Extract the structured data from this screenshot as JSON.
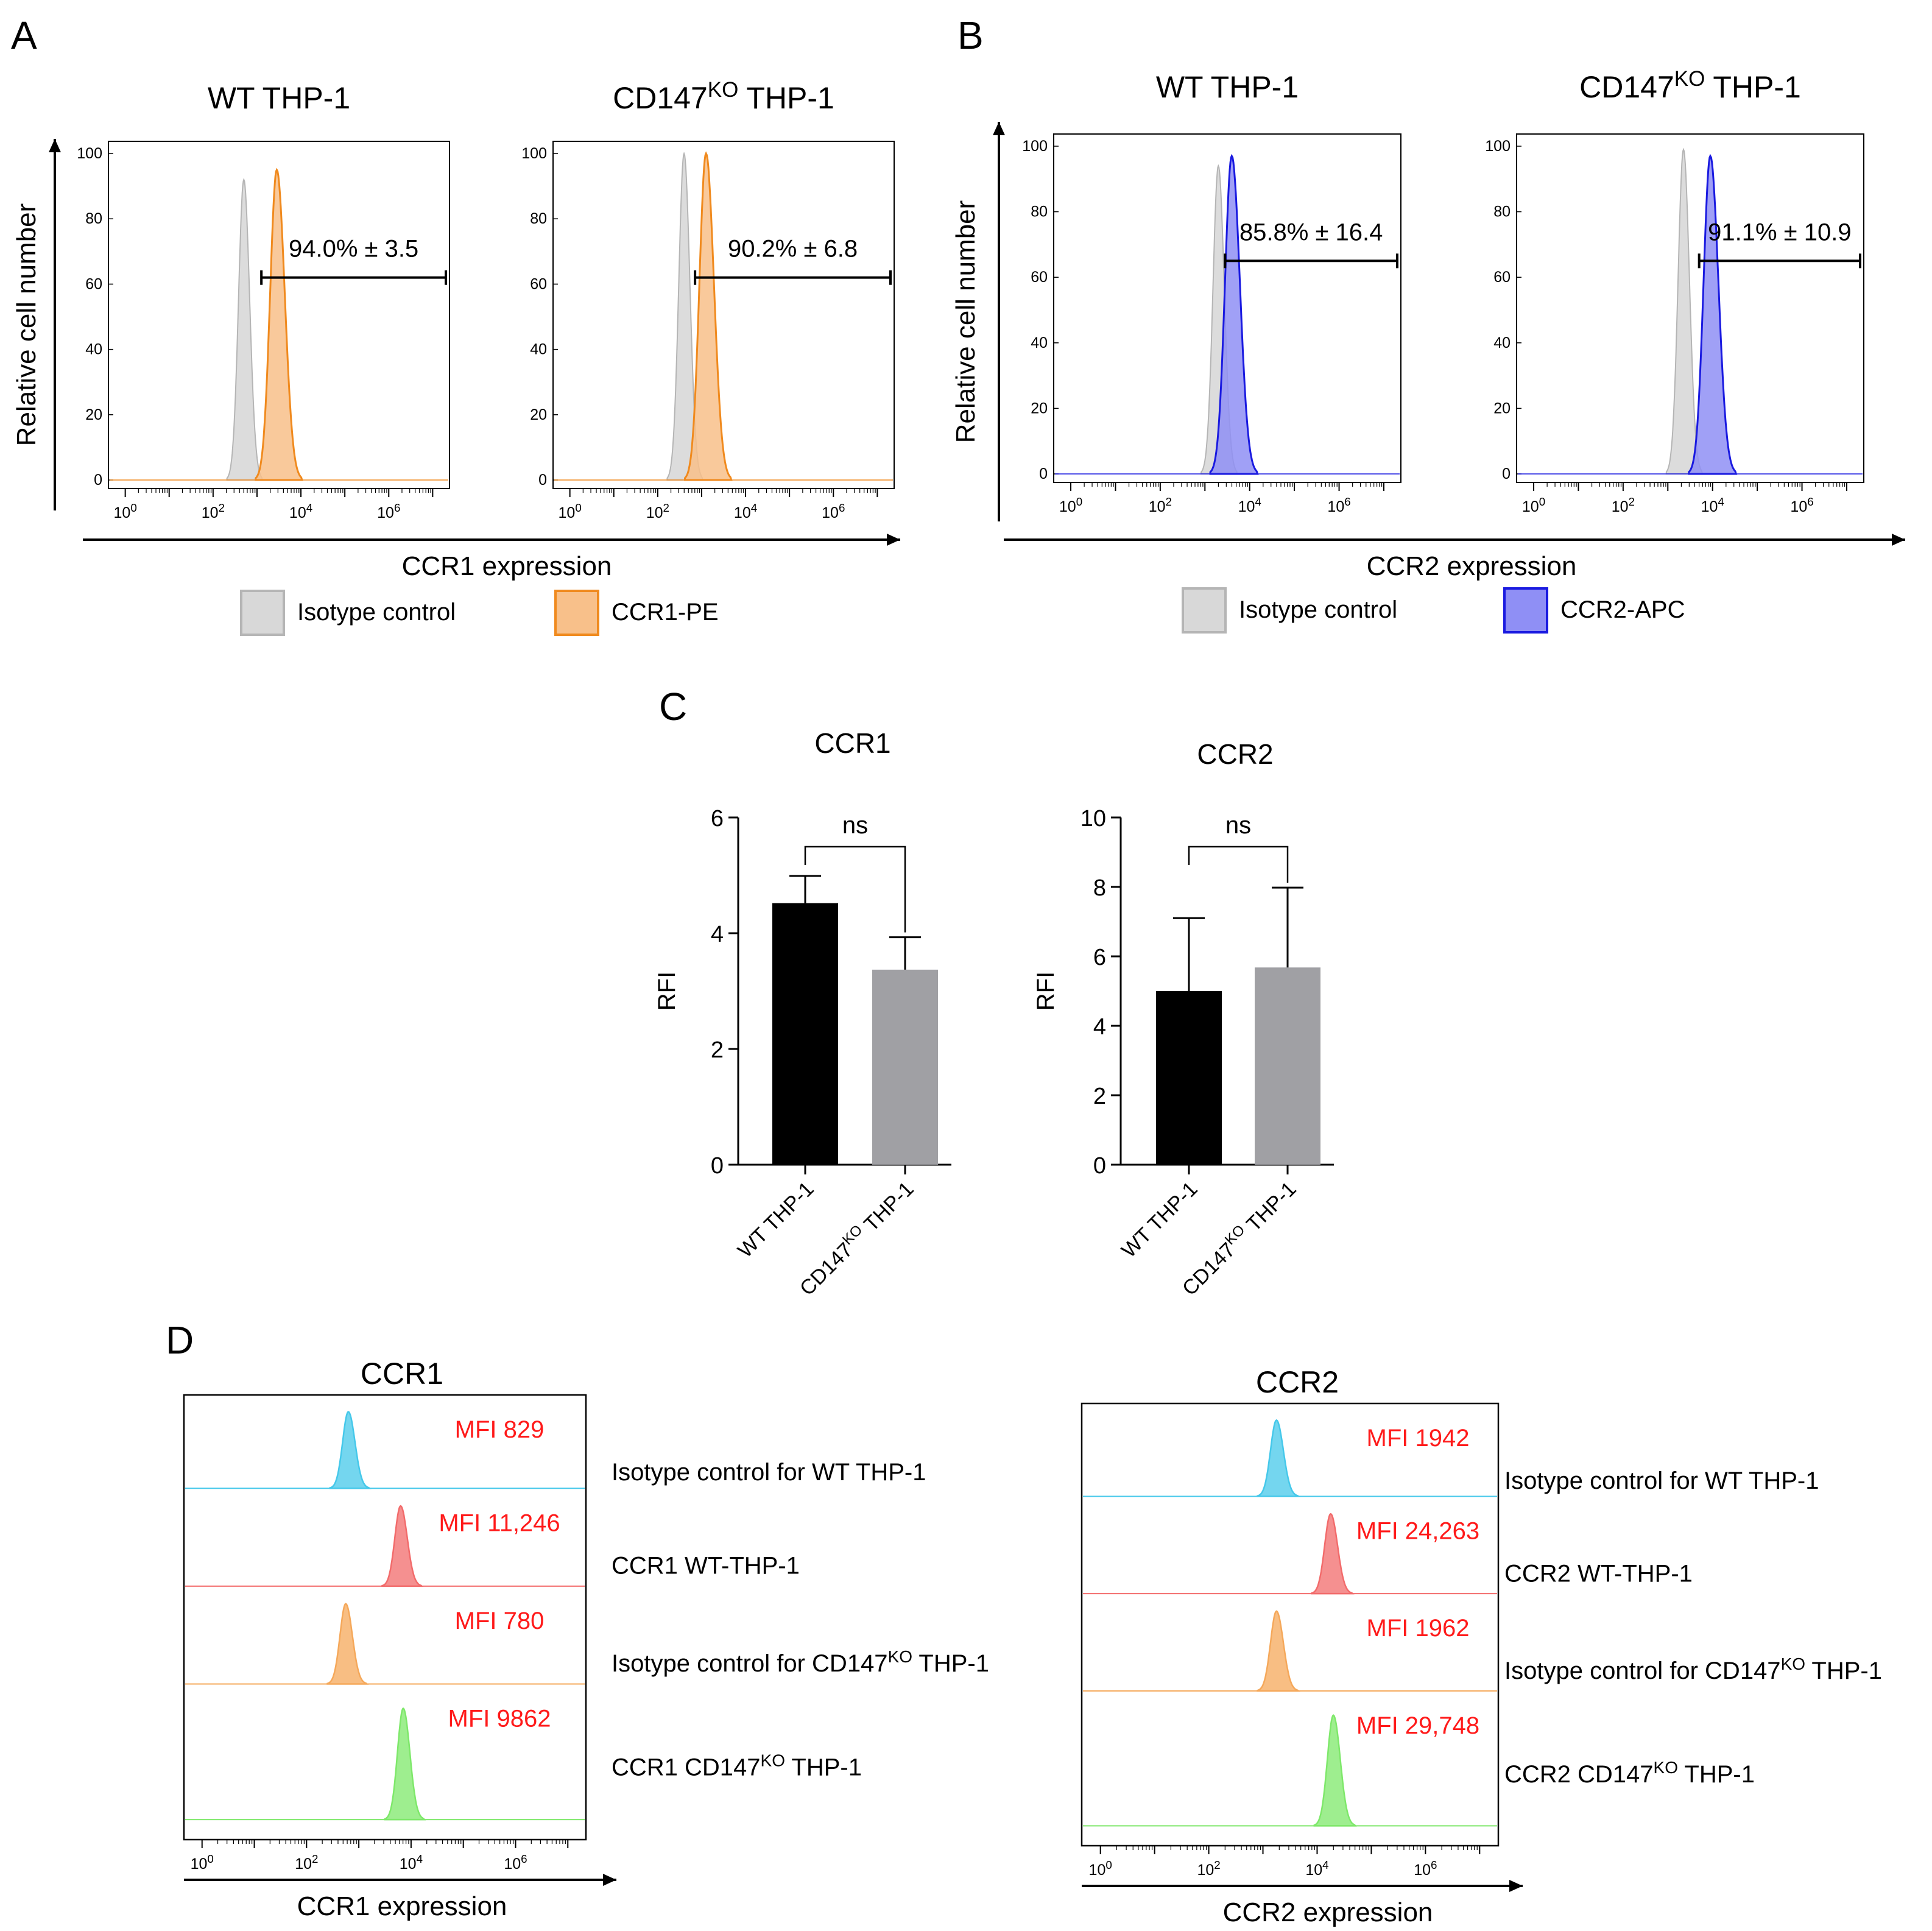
{
  "panel_letters": {
    "a": "A",
    "b": "B",
    "c": "C",
    "d": "D"
  },
  "chart_data": [
    {
      "id": "A",
      "type": "histogram",
      "ylabel": "Relative cell number",
      "xlabel": "CCR1 expression",
      "ylim": [
        0,
        100
      ],
      "yticks": [
        "0",
        "20",
        "40",
        "60",
        "80",
        "100"
      ],
      "xticks": {
        "base": "10",
        "exps": [
          "0",
          "2",
          "4",
          "6"
        ]
      },
      "legend": [
        {
          "label": "Isotype control",
          "color": "#d8d8d8",
          "edge": "#b5b5b5"
        },
        {
          "label": "CCR1-PE",
          "color": "#f8c08a",
          "edge": "#f08a1e"
        }
      ],
      "plots": [
        {
          "title_main": "WT THP-1",
          "title_pre": "",
          "title_sup": "",
          "title_post": "",
          "isotype_peak_log": 2.7,
          "stain_peak_log": 3.45,
          "isotype_height": 92,
          "stain_height": 95,
          "gate_label": "94.0% ± 3.5",
          "gate_start_log": 3.1,
          "gate_end_log": 7.3,
          "gate_y": 62
        },
        {
          "title_main": "",
          "title_pre": "CD147",
          "title_sup": "KO",
          "title_post": " THP-1",
          "isotype_peak_log": 2.6,
          "stain_peak_log": 3.1,
          "isotype_height": 100,
          "stain_height": 100,
          "gate_label": "90.2% ± 6.8",
          "gate_start_log": 2.85,
          "gate_end_log": 7.3,
          "gate_y": 62
        }
      ]
    },
    {
      "id": "B",
      "type": "histogram",
      "ylabel": "Relative cell number",
      "xlabel": "CCR2 expression",
      "ylim": [
        0,
        100
      ],
      "yticks": [
        "0",
        "20",
        "40",
        "60",
        "80",
        "100"
      ],
      "xticks": {
        "base": "10",
        "exps": [
          "0",
          "2",
          "4",
          "6"
        ]
      },
      "legend": [
        {
          "label": "Isotype control",
          "color": "#d8d8d8",
          "edge": "#b5b5b5"
        },
        {
          "label": "CCR2-APC",
          "color": "#8f8ff5",
          "edge": "#1a1ae0"
        }
      ],
      "plots": [
        {
          "title_main": "WT THP-1",
          "title_pre": "",
          "title_sup": "",
          "title_post": "",
          "isotype_peak_log": 3.3,
          "stain_peak_log": 3.6,
          "isotype_height": 94,
          "stain_height": 97,
          "gate_label": "85.8% ± 16.4",
          "gate_start_log": 3.45,
          "gate_end_log": 7.3,
          "gate_y": 65
        },
        {
          "title_main": "",
          "title_pre": "CD147",
          "title_sup": "KO",
          "title_post": " THP-1",
          "isotype_peak_log": 3.35,
          "stain_peak_log": 3.95,
          "isotype_height": 99,
          "stain_height": 97,
          "gate_label": "91.1% ± 10.9",
          "gate_start_log": 3.7,
          "gate_end_log": 7.3,
          "gate_y": 65
        }
      ]
    },
    {
      "id": "C",
      "type": "bar",
      "ylabel": "RFI",
      "categories": [
        "WT THP-1",
        "CD147KO THP-1"
      ],
      "cat_pre": "CD147",
      "cat_sup": "KO",
      "cat_post": " THP-1",
      "colors": [
        "#000000",
        "#a0a0a4"
      ],
      "charts": [
        {
          "title": "CCR1",
          "values": [
            4.52,
            3.37
          ],
          "errors": [
            0.47,
            0.56
          ],
          "ylim": [
            0,
            6
          ],
          "yticks": [
            "0",
            "2",
            "4",
            "6"
          ],
          "significance": "ns"
        },
        {
          "title": "CCR2",
          "values": [
            5.0,
            5.68
          ],
          "errors": [
            2.1,
            2.3
          ],
          "ylim": [
            0,
            10
          ],
          "yticks": [
            "0",
            "2",
            "4",
            "6",
            "8",
            "10"
          ],
          "significance": "ns"
        }
      ]
    },
    {
      "id": "D",
      "type": "histogram-stack",
      "xticks": {
        "base": "10",
        "exps": [
          "0",
          "2",
          "4",
          "6"
        ]
      },
      "panels": [
        {
          "title": "CCR1",
          "xlabel": "CCR1 expression",
          "tracks": [
            {
              "mfi": "MFI 829",
              "peak_log": 2.8,
              "color": "#45c8ea",
              "label_pre": "Isotype control for WT THP-1",
              "label_sup": "",
              "label_post": ""
            },
            {
              "mfi": "MFI 11,246",
              "peak_log": 3.8,
              "color": "#f26b6b",
              "label_pre": "CCR1 WT-THP-1",
              "label_sup": "",
              "label_post": ""
            },
            {
              "mfi": "MFI 780",
              "peak_log": 2.75,
              "color": "#f5a85a",
              "label_pre": "Isotype control for CD147",
              "label_sup": "KO",
              "label_post": " THP-1"
            },
            {
              "mfi": "MFI 9862",
              "peak_log": 3.85,
              "color": "#7ee86a",
              "label_pre": "CCR1 CD147",
              "label_sup": "KO",
              "label_post": " THP-1"
            }
          ]
        },
        {
          "title": "CCR2",
          "xlabel": "CCR2 expression",
          "tracks": [
            {
              "mfi": "MFI 1942",
              "peak_log": 3.25,
              "color": "#45c8ea",
              "label_pre": "Isotype control for WT THP-1",
              "label_sup": "",
              "label_post": ""
            },
            {
              "mfi": "MFI 24,263",
              "peak_log": 4.25,
              "color": "#f26b6b",
              "label_pre": "CCR2 WT-THP-1",
              "label_sup": "",
              "label_post": ""
            },
            {
              "mfi": "MFI 1962",
              "peak_log": 3.25,
              "color": "#f5a85a",
              "label_pre": "Isotype control for CD147",
              "label_sup": "KO",
              "label_post": " THP-1"
            },
            {
              "mfi": "MFI 29,748",
              "peak_log": 4.3,
              "color": "#7ee86a",
              "label_pre": "CCR2 CD147",
              "label_sup": "KO",
              "label_post": " THP-1"
            }
          ]
        }
      ]
    }
  ]
}
